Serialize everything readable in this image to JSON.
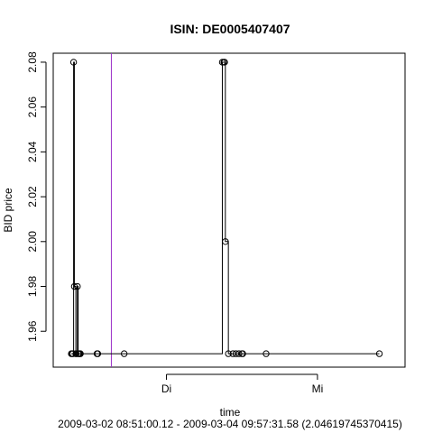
{
  "chart_data": {
    "type": "line",
    "step": true,
    "title": "ISIN: DE0005407407",
    "xlabel": "time",
    "subtitle": "2009-03-02 08:51:00.12 - 2009-03-04 09:57:31.58 (2.04619745370415)",
    "ylabel": "BID price",
    "xlim": [
      -0.12,
      2.21
    ],
    "ylim": [
      1.944,
      2.084
    ],
    "x_ticks": [
      {
        "value": 0.63,
        "label": "Di"
      },
      {
        "value": 1.63,
        "label": "Mi"
      }
    ],
    "y_ticks": [
      1.96,
      1.98,
      2.0,
      2.02,
      2.04,
      2.06,
      2.08
    ],
    "y_tick_labels": [
      "1.96",
      "1.98",
      "2.00",
      "2.02",
      "2.04",
      "2.06",
      "2.08"
    ],
    "vline": {
      "x": 0.265,
      "color": "#9b30c8"
    },
    "series": [
      {
        "x": [
          0.0,
          0.005,
          0.01,
          0.015,
          0.02,
          0.03,
          0.032,
          0.04,
          0.045,
          0.05,
          0.055,
          0.06,
          0.17,
          0.175,
          0.35,
          1.0,
          1.01,
          1.015,
          1.02,
          1.04,
          1.07,
          1.09,
          1.11,
          1.13,
          1.135,
          1.29,
          2.04
        ],
        "y": [
          1.95,
          1.95,
          1.95,
          2.08,
          1.98,
          1.95,
          1.95,
          1.98,
          1.95,
          1.95,
          1.95,
          1.95,
          1.95,
          1.95,
          1.95,
          2.08,
          2.08,
          2.08,
          2.0,
          1.95,
          1.95,
          1.95,
          1.95,
          1.95,
          1.95,
          1.95,
          1.95
        ],
        "color": "#000000"
      }
    ],
    "grid": false,
    "legend": "none"
  }
}
